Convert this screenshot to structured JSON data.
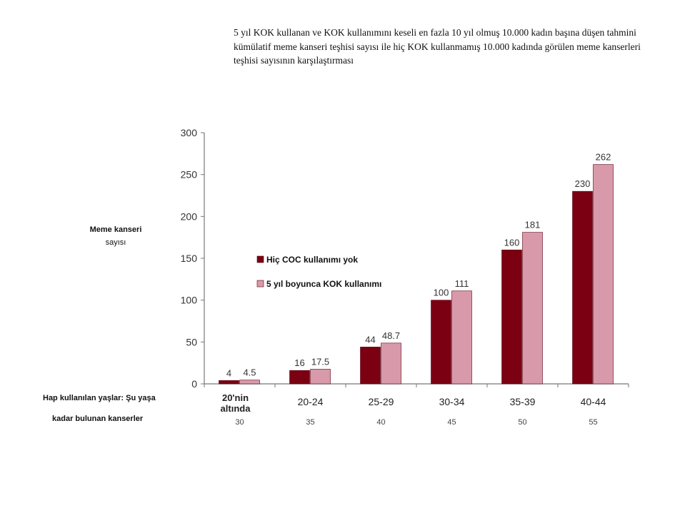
{
  "title": "5 yıl KOK kullanan ve KOK kullanımını keseli en fazla 10 yıl olmuş 10.000 kadın başına düşen tahmini kümülatif meme kanseri teşhisi sayısı ile hiç KOK kullanmamış 10.000 kadında görülen meme kanserleri teşhisi sayısının karşılaştırması",
  "ylabel_line1": "Meme kanseri",
  "ylabel_line2": "sayısı",
  "xlabel_line1": "Hap kullanılan yaşlar: Şu yaşa",
  "xlabel_line2": "kadar bulunan kanserler",
  "colors": {
    "series1": "#7a0012",
    "series2": "#d89aaa",
    "axis": "#777777"
  },
  "chart_data": {
    "type": "bar",
    "categories": [
      "20'nin altında",
      "20-24",
      "25-29",
      "30-34",
      "35-39",
      "40-44"
    ],
    "category_sublabels": [
      "30",
      "35",
      "40",
      "45",
      "50",
      "55"
    ],
    "series": [
      {
        "name": "Hiç COC kullanımı yok",
        "values": [
          4,
          16,
          44,
          100,
          160,
          230
        ],
        "labels": [
          "4",
          "16",
          "44",
          "100",
          "160",
          "230"
        ]
      },
      {
        "name": "5 yıl boyunca KOK kullanımı",
        "values": [
          4.5,
          17.5,
          48.7,
          111,
          181,
          262
        ],
        "labels": [
          "4.5",
          "17.5",
          "48.7",
          "111",
          "181",
          "262"
        ]
      }
    ],
    "ylim": [
      0,
      300
    ],
    "yticks": [
      0,
      50,
      100,
      150,
      200,
      250,
      300
    ],
    "legend_position": "middle-left",
    "grid": false
  }
}
